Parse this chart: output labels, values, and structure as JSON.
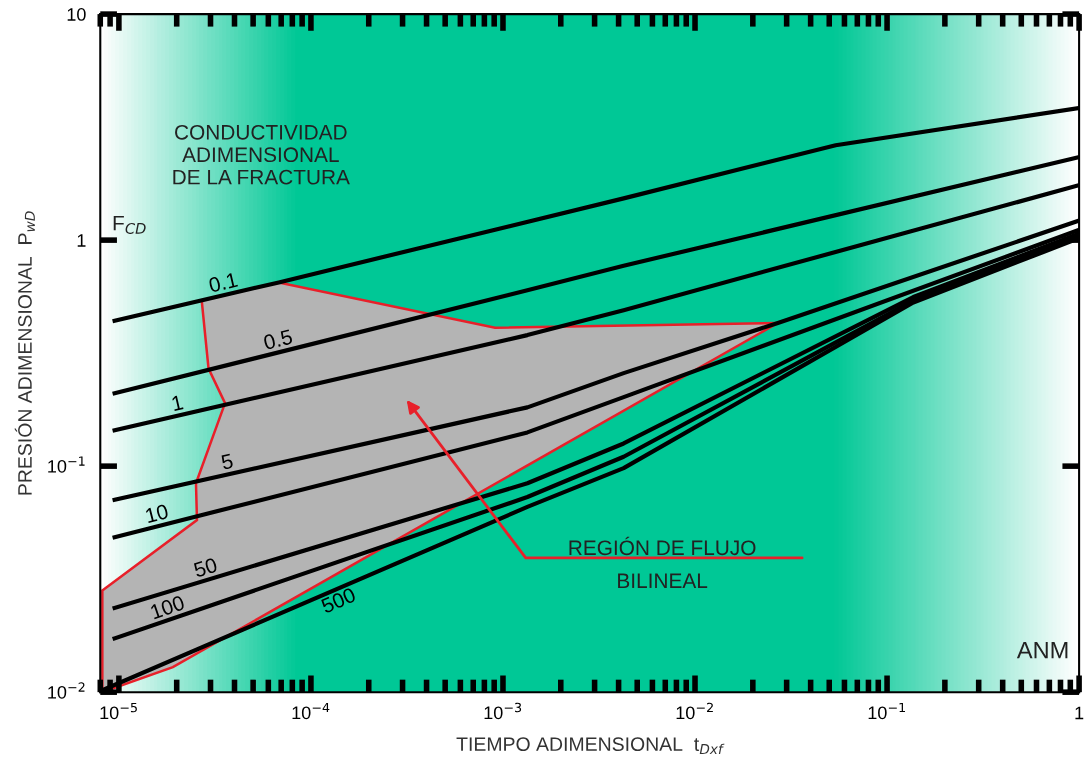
{
  "chart_data": {
    "type": "line",
    "xlabel": "TIEMPO ADIMENSIONAL  t$_{Dxf}$",
    "ylabel": "PRESIÓN ADIMENSIONAL  P$_{wD}$",
    "log": "xy",
    "xlim": [
      8e-06,
      1
    ],
    "ylim": [
      0.01,
      10
    ],
    "xticks": [
      {
        "value": 1e-05,
        "label": "10$^{−5}$"
      },
      {
        "value": 0.0001,
        "label": "10$^{−4}$"
      },
      {
        "value": 0.001,
        "label": "10$^{−3}$"
      },
      {
        "value": 0.01,
        "label": "10$^{−2}$"
      },
      {
        "value": 0.1,
        "label": "10$^{−1}$"
      },
      1
    ],
    "yticks": [
      {
        "value": 0.01,
        "label": "10$^{−2}$"
      },
      {
        "value": 0.1,
        "label": "10$^{−1}$"
      },
      1,
      10
    ],
    "line_style": "solid",
    "marker": "none",
    "annotations": [
      "CONDUCTIVIDAD\nADIMENSIONAL\nDE LA FRACTURA",
      "F$_{CD}$",
      "REGIÓN DE FLUJO\nBILINEAL",
      "ANM"
    ],
    "series": [
      {
        "type": "area",
        "color": "#b4b4b4",
        "x": [
          8.2e-06,
          2.55e-05,
          2.52e-05,
          3.57e-05,
          2.93e-05,
          2.7e-05,
          6.8e-05,
          0.00091,
          0.027,
          1.91e-05,
          8.2e-06
        ],
        "values": [
          0.0282,
          0.0577,
          0.084,
          0.19,
          0.27,
          0.54,
          0.65,
          0.41,
          0.43,
          0.0129,
          0.01
        ]
      },
      {
        "name": "0.1",
        "color": "#000000",
        "x": [
          9.5e-06,
          6.8e-05,
          0.00425,
          0.054,
          1
        ],
        "values": [
          0.44,
          0.65,
          1.53,
          2.63,
          3.84
        ]
      },
      {
        "name": "0.5",
        "color": "#000000",
        "x": [
          9.5e-06,
          0.00134,
          0.00425,
          1
        ],
        "values": [
          0.21,
          0.6,
          0.77,
          2.33
        ]
      },
      {
        "name": "1",
        "color": "#000000",
        "x": [
          9.5e-06,
          0.00134,
          0.00425,
          1
        ],
        "values": [
          0.144,
          0.38,
          0.49,
          1.75
        ]
      },
      {
        "name": "5",
        "color": "#000000",
        "x": [
          9.5e-06,
          0.00134,
          0.00425,
          0.027,
          1
        ],
        "values": [
          0.071,
          0.182,
          0.258,
          0.43,
          1.22
        ]
      },
      {
        "name": "10",
        "color": "#000000",
        "x": [
          9.5e-06,
          0.00134,
          0.00425,
          1
        ],
        "values": [
          0.0485,
          0.141,
          0.202,
          1.11
        ]
      },
      {
        "name": "50",
        "color": "#000000",
        "x": [
          9.5e-06,
          0.00134,
          0.00425,
          0.137,
          1
        ],
        "values": [
          0.0236,
          0.084,
          0.126,
          0.56,
          1.07
        ]
      },
      {
        "name": "100",
        "color": "#000000",
        "x": [
          9.5e-06,
          0.00134,
          0.00425,
          0.137,
          1
        ],
        "values": [
          0.0173,
          0.073,
          0.11,
          0.54,
          1.04
        ]
      },
      {
        "name": "500",
        "color": "#000000",
        "x": [
          8.2e-06,
          0.00134,
          0.00425,
          0.137,
          1
        ],
        "values": [
          0.0102,
          0.066,
          0.098,
          0.53,
          1.02
        ]
      }
    ]
  }
}
